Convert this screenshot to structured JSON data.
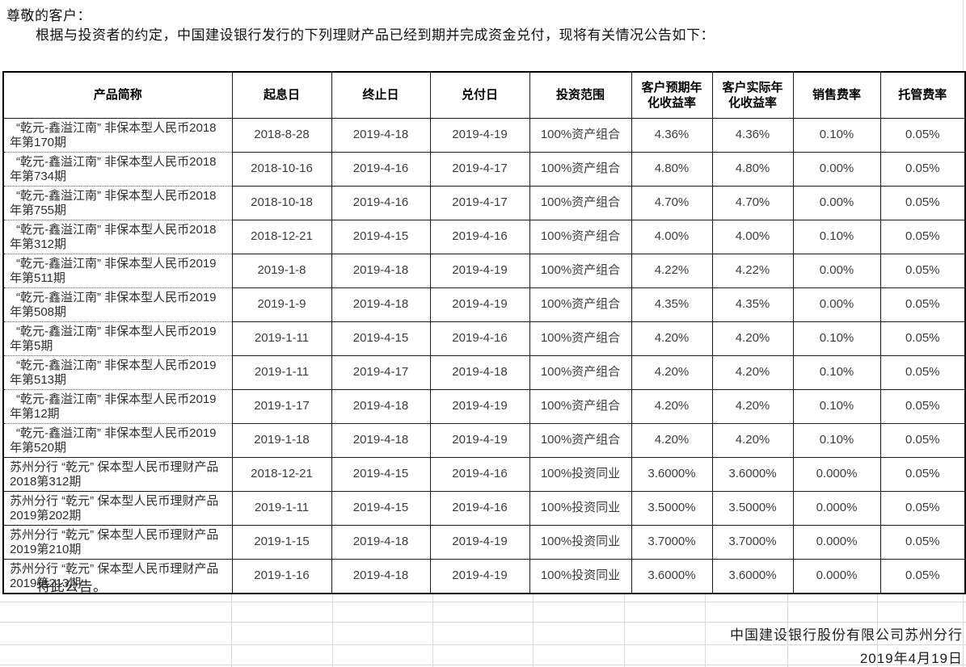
{
  "intro": {
    "salutation": "尊敬的客户：",
    "body": "根据与投资者的约定，中国建设银行发行的下列理财产品已经到期并完成资金兑付，现将有关情况公告如下："
  },
  "table": {
    "headers": [
      "产品简称",
      "起息日",
      "终止日",
      "兑付日",
      "投资范围",
      "客户预期年化收益率",
      "客户实际年化收益率",
      "销售费率",
      "托管费率"
    ],
    "rows": [
      [
        "“乾元-鑫溢江南” 非保本型人民币2018年第170期",
        "2018-8-28",
        "2019-4-18",
        "2019-4-19",
        "100%资产组合",
        "4.36%",
        "4.36%",
        "0.10%",
        "0.05%"
      ],
      [
        "“乾元-鑫溢江南” 非保本型人民币2018年第734期",
        "2018-10-16",
        "2019-4-16",
        "2019-4-17",
        "100%资产组合",
        "4.80%",
        "4.80%",
        "0.00%",
        "0.05%"
      ],
      [
        "“乾元-鑫溢江南” 非保本型人民币2018年第755期",
        "2018-10-18",
        "2019-4-16",
        "2019-4-17",
        "100%资产组合",
        "4.70%",
        "4.70%",
        "0.00%",
        "0.05%"
      ],
      [
        "“乾元-鑫溢江南” 非保本型人民币2018年第312期",
        "2018-12-21",
        "2019-4-15",
        "2019-4-16",
        "100%资产组合",
        "4.00%",
        "4.00%",
        "0.10%",
        "0.05%"
      ],
      [
        "“乾元-鑫溢江南” 非保本型人民币2019年第511期",
        "2019-1-8",
        "2019-4-18",
        "2019-4-19",
        "100%资产组合",
        "4.22%",
        "4.22%",
        "0.00%",
        "0.05%"
      ],
      [
        "“乾元-鑫溢江南” 非保本型人民币2019年第508期",
        "2019-1-9",
        "2019-4-18",
        "2019-4-19",
        "100%资产组合",
        "4.35%",
        "4.35%",
        "0.00%",
        "0.05%"
      ],
      [
        "“乾元-鑫溢江南” 非保本型人民币2019年第5期",
        "2019-1-11",
        "2019-4-15",
        "2019-4-16",
        "100%资产组合",
        "4.20%",
        "4.20%",
        "0.10%",
        "0.05%"
      ],
      [
        "“乾元-鑫溢江南” 非保本型人民币2019年第513期",
        "2019-1-11",
        "2019-4-17",
        "2019-4-18",
        "100%资产组合",
        "4.20%",
        "4.20%",
        "0.10%",
        "0.05%"
      ],
      [
        "“乾元-鑫溢江南” 非保本型人民币2019年第12期",
        "2019-1-17",
        "2019-4-18",
        "2019-4-19",
        "100%资产组合",
        "4.20%",
        "4.20%",
        "0.10%",
        "0.05%"
      ],
      [
        "“乾元-鑫溢江南” 非保本型人民币2019年第520期",
        "2019-1-18",
        "2019-4-18",
        "2019-4-19",
        "100%资产组合",
        "4.20%",
        "4.20%",
        "0.10%",
        "0.05%"
      ],
      [
        "苏州分行 “乾元” 保本型人民币理财产品2018第312期",
        "2018-12-21",
        "2019-4-15",
        "2019-4-16",
        "100%投资同业",
        "3.6000%",
        "3.6000%",
        "0.000%",
        "0.05%"
      ],
      [
        "苏州分行 “乾元” 保本型人民币理财产品2019第202期",
        "2019-1-11",
        "2019-4-15",
        "2019-4-16",
        "100%投资同业",
        "3.5000%",
        "3.5000%",
        "0.000%",
        "0.05%"
      ],
      [
        "苏州分行 “乾元” 保本型人民币理财产品2019第210期",
        "2019-1-15",
        "2019-4-18",
        "2019-4-19",
        "100%投资同业",
        "3.7000%",
        "3.7000%",
        "0.000%",
        "0.05%"
      ],
      [
        "苏州分行 “乾元” 保本型人民币理财产品2019第213期",
        "2019-1-16",
        "2019-4-18",
        "2019-4-19",
        "100%投资同业",
        "3.6000%",
        "3.6000%",
        "0.000%",
        "0.05%"
      ]
    ]
  },
  "footer": {
    "closing": "特此公告。",
    "signature": "中国建设银行股份有限公司苏州分行",
    "date": "2019年4月19日"
  },
  "colors": {
    "table_border": "#000000",
    "faint_grid": "#d9d9d9",
    "text": "#1a1a1a"
  }
}
